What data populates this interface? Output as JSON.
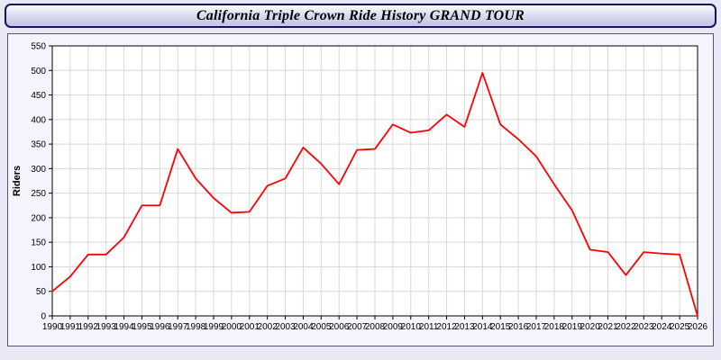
{
  "title": "California Triple Crown Ride History GRAND TOUR",
  "chart_data": {
    "type": "line",
    "title": "California Triple Crown Ride History GRAND TOUR",
    "xlabel": "",
    "ylabel": "Riders",
    "ylim": [
      0,
      550
    ],
    "ytick_step": 50,
    "grid": true,
    "legend_position": "none",
    "line_color": "#ff0000",
    "grid_color": "#d8d8d8",
    "plot_background": "#ffffff",
    "x": [
      1990,
      1991,
      1992,
      1993,
      1994,
      1995,
      1996,
      1997,
      1998,
      1999,
      2000,
      2001,
      2002,
      2003,
      2004,
      2005,
      2006,
      2007,
      2008,
      2009,
      2010,
      2011,
      2012,
      2013,
      2014,
      2015,
      2016,
      2017,
      2018,
      2019,
      2020,
      2021,
      2022,
      2023,
      2024,
      2025,
      2026
    ],
    "series": [
      {
        "name": "Riders",
        "values": [
          50,
          80,
          125,
          125,
          160,
          225,
          225,
          340,
          280,
          240,
          210,
          212,
          265,
          280,
          343,
          310,
          268,
          338,
          340,
          390,
          373,
          378,
          410,
          385,
          495,
          390,
          360,
          325,
          268,
          215,
          135,
          130,
          83,
          130,
          127,
          125,
          0
        ]
      }
    ]
  }
}
